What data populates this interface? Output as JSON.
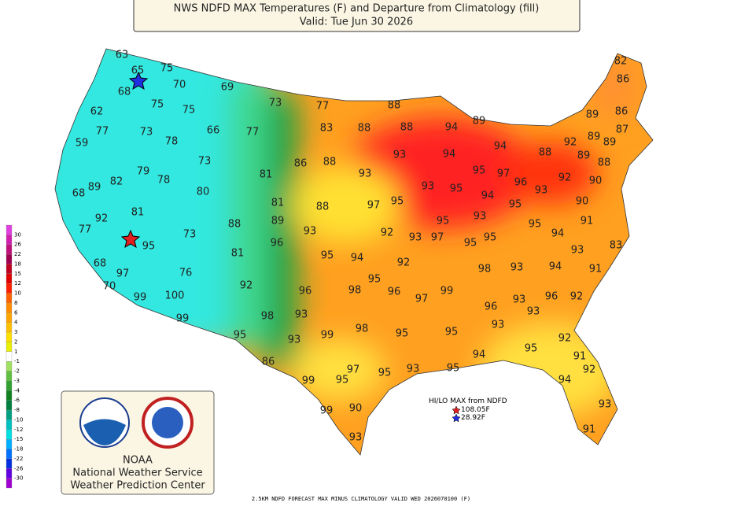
{
  "header": {
    "title": "NWS NDFD MAX Temperatures (F) and Departure from Climatology (fill)",
    "valid": "Valid: Tue Jun 30 2026"
  },
  "temperatures": [
    63,
    65,
    75,
    70,
    68,
    69,
    62,
    75,
    75,
    73,
    77,
    77,
    73,
    66,
    77,
    83,
    88,
    88,
    88,
    94,
    89,
    59,
    78,
    73,
    93,
    94,
    94,
    88,
    92,
    89,
    89,
    89,
    87,
    86,
    82,
    86,
    79,
    78,
    86,
    88,
    93,
    81,
    82,
    89,
    68,
    80,
    93,
    95,
    95,
    97,
    96,
    93,
    92,
    89,
    88,
    90,
    90,
    91,
    83,
    81,
    92,
    81,
    88,
    97,
    95,
    94,
    95,
    77,
    89,
    88,
    93,
    92,
    93,
    97,
    95,
    93,
    95,
    95,
    95,
    94,
    95,
    73,
    96,
    81,
    95,
    94,
    92,
    93,
    68,
    76,
    97,
    98,
    93,
    94,
    91,
    70,
    92,
    95,
    96,
    98,
    96,
    97,
    99,
    99,
    100,
    96,
    93,
    96,
    92,
    99,
    98,
    93,
    98,
    93,
    93,
    99,
    95,
    95,
    95,
    93,
    92,
    95,
    86,
    94,
    91,
    97,
    95,
    93,
    95,
    92,
    99,
    95,
    94,
    99,
    90,
    93,
    93,
    91
  ],
  "colorbar": [
    30,
    26,
    22,
    18,
    15,
    12,
    10,
    8,
    6,
    4,
    3,
    2,
    1,
    -1,
    -2,
    -3,
    -4,
    -6,
    -8,
    -10,
    -12,
    -15,
    -18,
    -22,
    -26,
    -30
  ],
  "hilo": {
    "title": "HI/LO MAX from NDFD",
    "max": "108.05F",
    "min": "28.92F"
  },
  "agency": {
    "lines": [
      "NOAA",
      "National Weather Service",
      "Weather Prediction Center"
    ]
  },
  "footer": "2.5KM NDFD FORECAST MAX MINUS CLIMATOLOGY VALID WED 2026070100 (F)"
}
